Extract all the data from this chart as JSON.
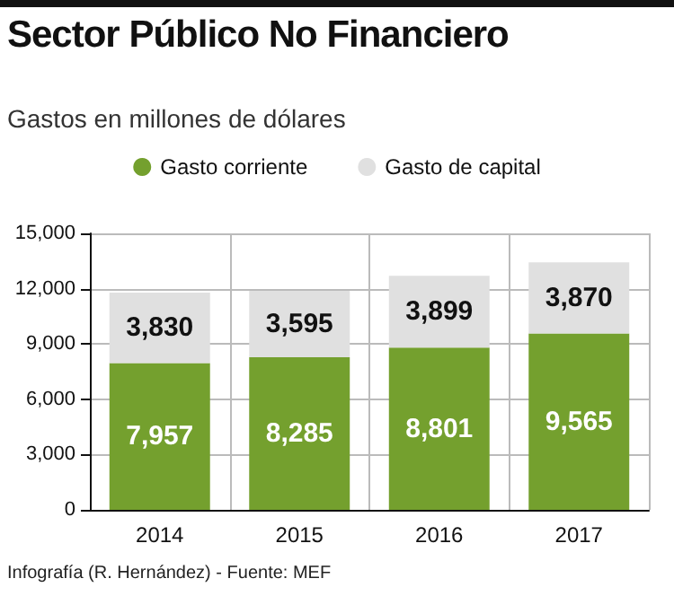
{
  "chart_data": {
    "type": "bar",
    "stacked": true,
    "title": "Sector Público No Financiero",
    "subtitle": "Gastos en millones de dólares",
    "categories": [
      "2014",
      "2015",
      "2016",
      "2017"
    ],
    "series": [
      {
        "name": "Gasto corriente",
        "color": "#74a02e",
        "values": [
          7957,
          8285,
          8801,
          9565
        ],
        "value_labels": [
          "7,957",
          "8,285",
          "8,801",
          "9,565"
        ]
      },
      {
        "name": "Gasto de capital",
        "color": "#e0e0e0",
        "values": [
          3830,
          3595,
          3899,
          3870
        ],
        "value_labels": [
          "3,830",
          "3,595",
          "3,899",
          "3,870"
        ]
      }
    ],
    "ylim": [
      0,
      15000
    ],
    "yticks": [
      {
        "value": 0,
        "label": "0"
      },
      {
        "value": 3000,
        "label": "3,000"
      },
      {
        "value": 6000,
        "label": "6,000"
      },
      {
        "value": 9000,
        "label": "9,000"
      },
      {
        "value": 12000,
        "label": "12,000"
      },
      {
        "value": 15000,
        "label": "15,000"
      }
    ],
    "grid": true,
    "legend": "top",
    "marker": "circle",
    "annotations": [
      "Infografía (R. Hernández) - Fuente: MEF"
    ]
  }
}
